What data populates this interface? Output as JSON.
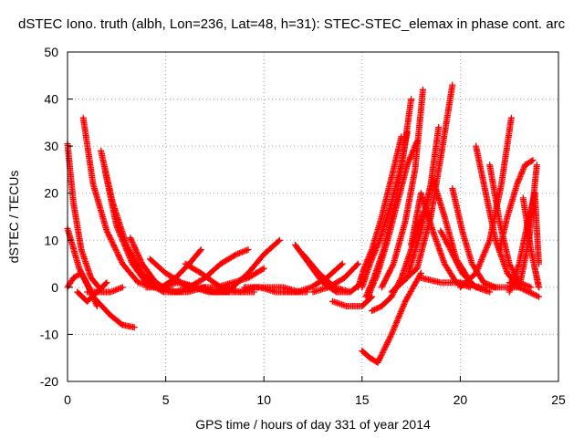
{
  "chart_data": {
    "type": "scatter",
    "title": "dSTEC Iono. truth (albh, Lon=236, Lat=48, h=31): STEC-STEC_elemax in phase cont. arc",
    "xlabel": "GPS time / hours of day 331 of year 2014",
    "ylabel": "dSTEC  / TECUs",
    "xlim": [
      0,
      25
    ],
    "ylim": [
      -20,
      50
    ],
    "xticks": [
      0,
      5,
      10,
      15,
      20,
      25
    ],
    "yticks": [
      -20,
      -10,
      0,
      10,
      20,
      30,
      40,
      50
    ],
    "grid": true,
    "marker": "plus",
    "color": "#ff0000",
    "series": [
      {
        "x": [
          0.0,
          0.3,
          0.7,
          1.2,
          1.6
        ],
        "y": [
          30.5,
          18,
          8,
          2,
          0
        ]
      },
      {
        "x": [
          0.0,
          0.6,
          1.3,
          2.2,
          2.8,
          3.4
        ],
        "y": [
          12.5,
          4,
          -2,
          -6,
          -8,
          -8.5
        ]
      },
      {
        "x": [
          0.0,
          0.3,
          0.7,
          1.1,
          1.5
        ],
        "y": [
          0,
          2,
          3,
          0,
          -4
        ]
      },
      {
        "x": [
          0.5,
          1.0,
          1.5,
          2.0
        ],
        "y": [
          -1,
          -3,
          -1,
          1
        ]
      },
      {
        "x": [
          0.8,
          1.3,
          2.0,
          2.8,
          3.6,
          4.4
        ],
        "y": [
          36,
          22,
          12,
          5,
          1,
          0
        ]
      },
      {
        "x": [
          1.0,
          1.6,
          2.2,
          2.8
        ],
        "y": [
          -1,
          -1,
          -1,
          0
        ]
      },
      {
        "x": [
          1.7,
          2.3,
          3.0,
          3.8,
          4.6,
          5.6
        ],
        "y": [
          29,
          18,
          9,
          3,
          0,
          -1
        ]
      },
      {
        "x": [
          1.9,
          2.5,
          3.3,
          4.0,
          4.9,
          5.8
        ],
        "y": [
          25,
          13,
          5,
          1,
          -1,
          -1
        ]
      },
      {
        "x": [
          3.2,
          3.8,
          4.5,
          5.3,
          6.1,
          7.0
        ],
        "y": [
          10.5,
          5,
          1,
          -1,
          -1,
          0
        ]
      },
      {
        "x": [
          4.0,
          4.8,
          5.6,
          6.4,
          7.2,
          8.0
        ],
        "y": [
          0,
          0,
          1,
          0,
          -1,
          -1
        ]
      },
      {
        "x": [
          4.2,
          5.0,
          5.8,
          6.6,
          7.4,
          8.2
        ],
        "y": [
          6,
          3,
          1,
          0,
          -1,
          -1
        ]
      },
      {
        "x": [
          4.8,
          5.5,
          6.2,
          6.8
        ],
        "y": [
          0,
          2,
          5,
          8
        ]
      },
      {
        "x": [
          5.5,
          6.2,
          7.0,
          7.8,
          8.6,
          9.2
        ],
        "y": [
          -1,
          0,
          2,
          5,
          7,
          8
        ]
      },
      {
        "x": [
          6.0,
          6.8,
          7.8,
          8.8,
          9.5
        ],
        "y": [
          5,
          3,
          0,
          -1,
          -1
        ]
      },
      {
        "x": [
          6.8,
          7.6,
          8.4,
          9.2,
          10.0
        ],
        "y": [
          0,
          0,
          1,
          2,
          4
        ]
      },
      {
        "x": [
          7.5,
          8.4,
          9.2,
          10.0,
          10.8
        ],
        "y": [
          -1,
          0,
          3,
          7,
          10
        ]
      },
      {
        "x": [
          8.0,
          8.8,
          9.5,
          10.2,
          11.0,
          11.8
        ],
        "y": [
          -1,
          -1,
          0,
          0,
          0,
          -1
        ]
      },
      {
        "x": [
          9.0,
          9.8,
          10.6,
          11.4,
          12.2
        ],
        "y": [
          0,
          0,
          -1,
          -1,
          -1
        ]
      },
      {
        "x": [
          11.0,
          11.7,
          12.4,
          13.2,
          14.0
        ],
        "y": [
          -1,
          -1,
          0,
          2,
          5
        ]
      },
      {
        "x": [
          11.6,
          12.3,
          13.0,
          13.7,
          14.4
        ],
        "y": [
          9,
          5,
          1,
          -1,
          -1
        ]
      },
      {
        "x": [
          12.0,
          12.8,
          13.6,
          14.4,
          15.0
        ],
        "y": [
          7,
          3,
          0,
          -1,
          1
        ]
      },
      {
        "x": [
          12.5,
          13.3,
          14.1,
          14.8
        ],
        "y": [
          -1,
          0,
          2,
          5
        ]
      },
      {
        "x": [
          13.5,
          14.2,
          15.0,
          15.5
        ],
        "y": [
          -3,
          -4,
          -4,
          -2
        ]
      },
      {
        "x": [
          14.8,
          15.1,
          15.5,
          16.0,
          16.6,
          17.0
        ],
        "y": [
          0,
          4,
          8,
          15,
          25,
          32
        ]
      },
      {
        "x": [
          15.0,
          15.4,
          15.9,
          16.5,
          17.0,
          17.3
        ],
        "y": [
          0,
          5,
          10,
          18,
          26,
          33
        ]
      },
      {
        "x": [
          15.2,
          15.6,
          16.1,
          16.7,
          17.1,
          17.5
        ],
        "y": [
          -2,
          2,
          8,
          18,
          28,
          40
        ]
      },
      {
        "x": [
          15.3,
          15.8,
          16.3,
          16.8,
          17.3,
          17.8
        ],
        "y": [
          -2,
          3,
          10,
          18,
          26,
          31
        ]
      },
      {
        "x": [
          15.5,
          16.0,
          16.5,
          17.0,
          17.5,
          18.1
        ],
        "y": [
          -5,
          -4,
          -2,
          2,
          8,
          16
        ]
      },
      {
        "x": [
          15.0,
          15.4,
          15.8,
          16.5,
          17.2,
          18.0
        ],
        "y": [
          -13.5,
          -15,
          -16,
          -10,
          -3,
          3
        ]
      },
      {
        "x": [
          16.0,
          16.6,
          17.2,
          17.7,
          18.1
        ],
        "y": [
          0,
          5,
          14,
          25,
          42
        ]
      },
      {
        "x": [
          16.5,
          17.3,
          18.0,
          18.5,
          18.9
        ],
        "y": [
          -1,
          2,
          12,
          22,
          34
        ]
      },
      {
        "x": [
          17.0,
          17.8,
          18.5,
          19.1,
          19.6
        ],
        "y": [
          1,
          4,
          15,
          30,
          43
        ]
      },
      {
        "x": [
          17.5,
          18.0,
          18.6,
          19.2,
          19.8,
          20.5
        ],
        "y": [
          9,
          20,
          12,
          5,
          1,
          0
        ]
      },
      {
        "x": [
          18.2,
          18.6,
          19.2,
          19.8,
          20.4
        ],
        "y": [
          16,
          23,
          15,
          6,
          2
        ]
      },
      {
        "x": [
          19.0,
          19.5,
          20.1,
          20.8,
          21.5
        ],
        "y": [
          12,
          8,
          3,
          0,
          -1
        ]
      },
      {
        "x": [
          19.6,
          20.1,
          20.6,
          21.2,
          21.8
        ],
        "y": [
          21,
          12,
          5,
          1,
          0
        ]
      },
      {
        "x": [
          18.0,
          19.0,
          20.0,
          21.0,
          22.0,
          23.0
        ],
        "y": [
          2,
          1,
          1,
          0,
          0,
          0
        ]
      },
      {
        "x": [
          20.0,
          20.8,
          21.5,
          22.1,
          22.6
        ],
        "y": [
          0,
          3,
          10,
          22,
          36
        ]
      },
      {
        "x": [
          20.8,
          21.3,
          21.8,
          22.4,
          23.0
        ],
        "y": [
          30,
          20,
          10,
          3,
          0
        ]
      },
      {
        "x": [
          21.5,
          22.0,
          22.5,
          23.0,
          23.6
        ],
        "y": [
          26,
          14,
          5,
          1,
          0
        ]
      },
      {
        "x": [
          22.0,
          22.4,
          22.9,
          23.3,
          23.7
        ],
        "y": [
          8,
          15,
          22,
          26,
          27
        ]
      },
      {
        "x": [
          22.5,
          23.0,
          23.4,
          23.8,
          24.0
        ],
        "y": [
          -1,
          5,
          13,
          20,
          5
        ]
      },
      {
        "x": [
          23.0,
          23.5,
          23.9
        ],
        "y": [
          0,
          10,
          26
        ]
      },
      {
        "x": [
          22.5,
          23.0,
          23.5,
          24.0
        ],
        "y": [
          1,
          0,
          -1,
          -2
        ]
      },
      {
        "x": [
          23.2,
          23.6,
          24.0
        ],
        "y": [
          19,
          8,
          0
        ]
      },
      {
        "x": [
          23.8,
          24.0
        ],
        "y": [
          4,
          0
        ]
      }
    ]
  }
}
